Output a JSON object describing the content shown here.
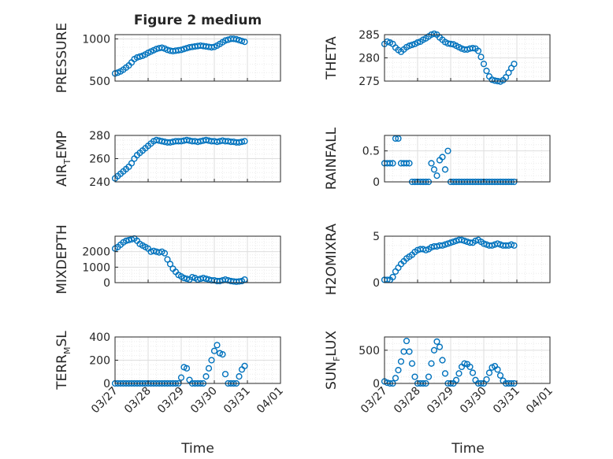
{
  "figure": {
    "title": "Figure 2 medium",
    "xlabel": "Time"
  },
  "x_ticks": [
    "03/27",
    "03/28",
    "03/29",
    "03/30",
    "03/31",
    "04/01"
  ],
  "x_domain": [
    "03/27 00:00",
    "04/01 00:00"
  ],
  "colors": {
    "marker": "#0072bd",
    "grid": "#dedede",
    "axis": "#262626"
  },
  "chart_data": [
    {
      "type": "scatter",
      "ylabel": "PRESSURE",
      "ylim": [
        500,
        1050
      ],
      "yticks": [
        {
          "v": 500,
          "t": "500"
        },
        {
          "v": 1000,
          "t": "1000"
        }
      ],
      "x": [
        "03/27 00:00",
        "03/27 02:00",
        "03/27 04:00",
        "03/27 06:00",
        "03/27 08:00",
        "03/27 10:00",
        "03/27 12:00",
        "03/27 14:00",
        "03/27 16:00",
        "03/27 18:00",
        "03/27 20:00",
        "03/27 22:00",
        "03/28 00:00",
        "03/28 02:00",
        "03/28 04:00",
        "03/28 06:00",
        "03/28 08:00",
        "03/28 10:00",
        "03/28 12:00",
        "03/28 14:00",
        "03/28 16:00",
        "03/28 18:00",
        "03/28 20:00",
        "03/28 22:00",
        "03/29 00:00",
        "03/29 02:00",
        "03/29 04:00",
        "03/29 06:00",
        "03/29 08:00",
        "03/29 10:00",
        "03/29 12:00",
        "03/29 14:00",
        "03/29 16:00",
        "03/29 18:00",
        "03/29 20:00",
        "03/29 22:00",
        "03/30 00:00",
        "03/30 02:00",
        "03/30 04:00",
        "03/30 06:00",
        "03/30 08:00",
        "03/30 10:00",
        "03/30 12:00",
        "03/30 14:00",
        "03/30 16:00",
        "03/30 18:00",
        "03/30 20:00",
        "03/30 22:00"
      ],
      "y": [
        590,
        600,
        615,
        635,
        660,
        685,
        720,
        760,
        780,
        790,
        800,
        815,
        835,
        850,
        865,
        880,
        890,
        895,
        885,
        870,
        860,
        855,
        860,
        865,
        870,
        880,
        890,
        900,
        905,
        910,
        915,
        920,
        915,
        910,
        905,
        900,
        905,
        920,
        940,
        960,
        980,
        990,
        1000,
        1000,
        995,
        985,
        975,
        965
      ]
    },
    {
      "type": "scatter",
      "ylabel": "THETA",
      "ylim": [
        275,
        285
      ],
      "yticks": [
        {
          "v": 275,
          "t": "275"
        },
        {
          "v": 280,
          "t": "280"
        },
        {
          "v": 285,
          "t": "285"
        }
      ],
      "x": [
        "03/27 00:00",
        "03/27 02:00",
        "03/27 04:00",
        "03/27 06:00",
        "03/27 08:00",
        "03/27 10:00",
        "03/27 12:00",
        "03/27 14:00",
        "03/27 16:00",
        "03/27 18:00",
        "03/27 20:00",
        "03/27 22:00",
        "03/28 00:00",
        "03/28 02:00",
        "03/28 04:00",
        "03/28 06:00",
        "03/28 08:00",
        "03/28 10:00",
        "03/28 12:00",
        "03/28 14:00",
        "03/28 16:00",
        "03/28 18:00",
        "03/28 20:00",
        "03/28 22:00",
        "03/29 00:00",
        "03/29 02:00",
        "03/29 04:00",
        "03/29 06:00",
        "03/29 08:00",
        "03/29 10:00",
        "03/29 12:00",
        "03/29 14:00",
        "03/29 16:00",
        "03/29 18:00",
        "03/29 20:00",
        "03/29 22:00",
        "03/30 00:00",
        "03/30 02:00",
        "03/30 04:00",
        "03/30 06:00",
        "03/30 08:00",
        "03/30 10:00",
        "03/30 12:00",
        "03/30 14:00",
        "03/30 16:00",
        "03/30 18:00",
        "03/30 20:00",
        "03/30 22:00"
      ],
      "y": [
        283,
        283.5,
        283.3,
        283,
        282.2,
        281.7,
        281.3,
        281.8,
        282.3,
        282.6,
        282.8,
        283,
        283.3,
        283.5,
        283.9,
        284.2,
        284.6,
        285,
        285.2,
        285,
        284.4,
        283.9,
        283.4,
        283.1,
        283,
        282.9,
        282.6,
        282.3,
        282,
        281.8,
        281.8,
        282,
        282.1,
        282,
        281.5,
        280.2,
        278.7,
        277.2,
        276,
        275.3,
        275.1,
        275,
        274.9,
        275.2,
        275.8,
        276.8,
        277.8,
        278.7
      ]
    },
    {
      "type": "scatter",
      "ylabel": "AIR_TEMP",
      "ylim": [
        240,
        280
      ],
      "yticks": [
        {
          "v": 240,
          "t": "240"
        },
        {
          "v": 260,
          "t": "260"
        },
        {
          "v": 280,
          "t": "280"
        }
      ],
      "x": [
        "03/27 00:00",
        "03/27 02:00",
        "03/27 04:00",
        "03/27 06:00",
        "03/27 08:00",
        "03/27 10:00",
        "03/27 12:00",
        "03/27 14:00",
        "03/27 16:00",
        "03/27 18:00",
        "03/27 20:00",
        "03/27 22:00",
        "03/28 00:00",
        "03/28 02:00",
        "03/28 04:00",
        "03/28 06:00",
        "03/28 08:00",
        "03/28 10:00",
        "03/28 12:00",
        "03/28 14:00",
        "03/28 16:00",
        "03/28 18:00",
        "03/28 20:00",
        "03/28 22:00",
        "03/29 00:00",
        "03/29 02:00",
        "03/29 04:00",
        "03/29 06:00",
        "03/29 08:00",
        "03/29 10:00",
        "03/29 12:00",
        "03/29 14:00",
        "03/29 16:00",
        "03/29 18:00",
        "03/29 20:00",
        "03/29 22:00",
        "03/30 00:00",
        "03/30 02:00",
        "03/30 04:00",
        "03/30 06:00",
        "03/30 08:00",
        "03/30 10:00",
        "03/30 12:00",
        "03/30 14:00",
        "03/30 16:00",
        "03/30 18:00",
        "03/30 20:00",
        "03/30 22:00"
      ],
      "y": [
        243,
        245,
        247,
        249,
        251,
        253,
        256,
        260,
        263,
        265,
        267,
        269,
        271,
        273,
        275,
        276,
        275.5,
        275,
        274.5,
        274,
        274,
        274.5,
        275,
        275,
        275,
        275.5,
        276,
        275.5,
        275,
        275,
        274.5,
        275,
        275.5,
        276,
        275.5,
        275,
        275,
        274.5,
        275,
        275.5,
        275,
        275,
        274.5,
        274.5,
        274,
        274,
        274.5,
        275
      ]
    },
    {
      "type": "scatter",
      "ylabel": "RAINFALL",
      "ylim": [
        0,
        0.75
      ],
      "yticks": [
        {
          "v": 0,
          "t": "0"
        },
        {
          "v": 0.5,
          "t": "0.5"
        }
      ],
      "x": [
        "03/27 00:00",
        "03/27 02:00",
        "03/27 04:00",
        "03/27 06:00",
        "03/27 08:00",
        "03/27 10:00",
        "03/27 12:00",
        "03/27 14:00",
        "03/27 16:00",
        "03/27 18:00",
        "03/27 20:00",
        "03/27 22:00",
        "03/28 00:00",
        "03/28 02:00",
        "03/28 04:00",
        "03/28 06:00",
        "03/28 08:00",
        "03/28 10:00",
        "03/28 12:00",
        "03/28 14:00",
        "03/28 16:00",
        "03/28 18:00",
        "03/28 20:00",
        "03/28 22:00",
        "03/29 00:00",
        "03/29 02:00",
        "03/29 04:00",
        "03/29 06:00",
        "03/29 08:00",
        "03/29 10:00",
        "03/29 12:00",
        "03/29 14:00",
        "03/29 16:00",
        "03/29 18:00",
        "03/29 20:00",
        "03/29 22:00",
        "03/30 00:00",
        "03/30 02:00",
        "03/30 04:00",
        "03/30 06:00",
        "03/30 08:00",
        "03/30 10:00",
        "03/30 12:00",
        "03/30 14:00",
        "03/30 16:00",
        "03/30 18:00",
        "03/30 20:00",
        "03/30 22:00"
      ],
      "y": [
        0.3,
        0.3,
        0.3,
        0.3,
        0.7,
        0.7,
        0.3,
        0.3,
        0.3,
        0.3,
        0,
        0,
        0,
        0,
        0,
        0,
        0,
        0.3,
        0.2,
        0.1,
        0.35,
        0.4,
        0.2,
        0.5,
        0,
        0,
        0,
        0,
        0,
        0,
        0,
        0,
        0,
        0,
        0,
        0,
        0,
        0,
        0,
        0,
        0,
        0,
        0,
        0,
        0,
        0,
        0,
        0
      ]
    },
    {
      "type": "scatter",
      "ylabel": "MIXDEPTH",
      "ylim": [
        0,
        3000
      ],
      "yticks": [
        {
          "v": 0,
          "t": "0"
        },
        {
          "v": 1000,
          "t": "1000"
        },
        {
          "v": 2000,
          "t": "2000"
        }
      ],
      "x": [
        "03/27 00:00",
        "03/27 02:00",
        "03/27 04:00",
        "03/27 06:00",
        "03/27 08:00",
        "03/27 10:00",
        "03/27 12:00",
        "03/27 14:00",
        "03/27 16:00",
        "03/27 18:00",
        "03/27 20:00",
        "03/27 22:00",
        "03/28 00:00",
        "03/28 02:00",
        "03/28 04:00",
        "03/28 06:00",
        "03/28 08:00",
        "03/28 10:00",
        "03/28 12:00",
        "03/28 14:00",
        "03/28 16:00",
        "03/28 18:00",
        "03/28 20:00",
        "03/28 22:00",
        "03/29 00:00",
        "03/29 02:00",
        "03/29 04:00",
        "03/29 06:00",
        "03/29 08:00",
        "03/29 10:00",
        "03/29 12:00",
        "03/29 14:00",
        "03/29 16:00",
        "03/29 18:00",
        "03/29 20:00",
        "03/29 22:00",
        "03/30 00:00",
        "03/30 02:00",
        "03/30 04:00",
        "03/30 06:00",
        "03/30 08:00",
        "03/30 10:00",
        "03/30 12:00",
        "03/30 14:00",
        "03/30 16:00",
        "03/30 18:00",
        "03/30 20:00",
        "03/30 22:00"
      ],
      "y": [
        2200,
        2300,
        2450,
        2600,
        2700,
        2750,
        2800,
        2850,
        2700,
        2500,
        2400,
        2300,
        2200,
        2000,
        2050,
        2000,
        1950,
        2000,
        1900,
        1500,
        1200,
        900,
        700,
        500,
        400,
        300,
        250,
        200,
        350,
        300,
        200,
        250,
        300,
        250,
        200,
        150,
        150,
        100,
        100,
        150,
        200,
        150,
        100,
        80,
        60,
        80,
        100,
        200
      ]
    },
    {
      "type": "scatter",
      "ylabel": "H2OMIXRA",
      "ylim": [
        0,
        5
      ],
      "yticks": [
        {
          "v": 0,
          "t": "0"
        },
        {
          "v": 5,
          "t": "5"
        }
      ],
      "x": [
        "03/27 00:00",
        "03/27 02:00",
        "03/27 04:00",
        "03/27 06:00",
        "03/27 08:00",
        "03/27 10:00",
        "03/27 12:00",
        "03/27 14:00",
        "03/27 16:00",
        "03/27 18:00",
        "03/27 20:00",
        "03/27 22:00",
        "03/28 00:00",
        "03/28 02:00",
        "03/28 04:00",
        "03/28 06:00",
        "03/28 08:00",
        "03/28 10:00",
        "03/28 12:00",
        "03/28 14:00",
        "03/28 16:00",
        "03/28 18:00",
        "03/28 20:00",
        "03/28 22:00",
        "03/29 00:00",
        "03/29 02:00",
        "03/29 04:00",
        "03/29 06:00",
        "03/29 08:00",
        "03/29 10:00",
        "03/29 12:00",
        "03/29 14:00",
        "03/29 16:00",
        "03/29 18:00",
        "03/29 20:00",
        "03/29 22:00",
        "03/30 00:00",
        "03/30 02:00",
        "03/30 04:00",
        "03/30 06:00",
        "03/30 08:00",
        "03/30 10:00",
        "03/30 12:00",
        "03/30 14:00",
        "03/30 16:00",
        "03/30 18:00",
        "03/30 20:00",
        "03/30 22:00"
      ],
      "y": [
        0.3,
        0.3,
        0.3,
        0.6,
        1.2,
        1.6,
        2,
        2.3,
        2.6,
        2.8,
        3,
        3.3,
        3.5,
        3.6,
        3.6,
        3.5,
        3.6,
        3.8,
        3.9,
        3.9,
        4,
        4,
        4.1,
        4.2,
        4.3,
        4.4,
        4.5,
        4.6,
        4.6,
        4.5,
        4.4,
        4.3,
        4.3,
        4.5,
        4.6,
        4.4,
        4.2,
        4.1,
        4,
        4,
        4.1,
        4.2,
        4.1,
        4,
        4,
        4,
        4.1,
        4
      ]
    },
    {
      "type": "scatter",
      "ylabel": "TERR_MSL",
      "ylim": [
        0,
        400
      ],
      "yticks": [
        {
          "v": 0,
          "t": "0"
        },
        {
          "v": 200,
          "t": "200"
        },
        {
          "v": 400,
          "t": "400"
        }
      ],
      "x": [
        "03/27 00:00",
        "03/27 02:00",
        "03/27 04:00",
        "03/27 06:00",
        "03/27 08:00",
        "03/27 10:00",
        "03/27 12:00",
        "03/27 14:00",
        "03/27 16:00",
        "03/27 18:00",
        "03/27 20:00",
        "03/27 22:00",
        "03/28 00:00",
        "03/28 02:00",
        "03/28 04:00",
        "03/28 06:00",
        "03/28 08:00",
        "03/28 10:00",
        "03/28 12:00",
        "03/28 14:00",
        "03/28 16:00",
        "03/28 18:00",
        "03/28 20:00",
        "03/28 22:00",
        "03/29 00:00",
        "03/29 02:00",
        "03/29 04:00",
        "03/29 06:00",
        "03/29 08:00",
        "03/29 10:00",
        "03/29 12:00",
        "03/29 14:00",
        "03/29 16:00",
        "03/29 18:00",
        "03/29 20:00",
        "03/29 22:00",
        "03/30 00:00",
        "03/30 02:00",
        "03/30 04:00",
        "03/30 06:00",
        "03/30 08:00",
        "03/30 10:00",
        "03/30 12:00",
        "03/30 14:00",
        "03/30 16:00",
        "03/30 18:00",
        "03/30 20:00",
        "03/30 22:00"
      ],
      "y": [
        0,
        0,
        0,
        0,
        0,
        0,
        0,
        0,
        0,
        0,
        0,
        0,
        0,
        0,
        0,
        0,
        0,
        0,
        0,
        0,
        0,
        0,
        0,
        0,
        50,
        140,
        130,
        30,
        0,
        0,
        0,
        0,
        0,
        60,
        130,
        200,
        280,
        330,
        260,
        250,
        80,
        0,
        0,
        0,
        0,
        60,
        120,
        150
      ]
    },
    {
      "type": "scatter",
      "ylabel": "SUN_FLUX",
      "ylim": [
        0,
        700
      ],
      "yticks": [
        {
          "v": 0,
          "t": "0"
        },
        {
          "v": 500,
          "t": "500"
        }
      ],
      "x": [
        "03/27 00:00",
        "03/27 02:00",
        "03/27 04:00",
        "03/27 06:00",
        "03/27 08:00",
        "03/27 10:00",
        "03/27 12:00",
        "03/27 14:00",
        "03/27 16:00",
        "03/27 18:00",
        "03/27 20:00",
        "03/27 22:00",
        "03/28 00:00",
        "03/28 02:00",
        "03/28 04:00",
        "03/28 06:00",
        "03/28 08:00",
        "03/28 10:00",
        "03/28 12:00",
        "03/28 14:00",
        "03/28 16:00",
        "03/28 18:00",
        "03/28 20:00",
        "03/28 22:00",
        "03/29 00:00",
        "03/29 02:00",
        "03/29 04:00",
        "03/29 06:00",
        "03/29 08:00",
        "03/29 10:00",
        "03/29 12:00",
        "03/29 14:00",
        "03/29 16:00",
        "03/29 18:00",
        "03/29 20:00",
        "03/29 22:00",
        "03/30 00:00",
        "03/30 02:00",
        "03/30 04:00",
        "03/30 06:00",
        "03/30 08:00",
        "03/30 10:00",
        "03/30 12:00",
        "03/30 14:00",
        "03/30 16:00",
        "03/30 18:00",
        "03/30 20:00",
        "03/30 22:00"
      ],
      "y": [
        30,
        10,
        0,
        0,
        80,
        200,
        330,
        480,
        640,
        480,
        300,
        100,
        0,
        0,
        0,
        0,
        100,
        300,
        500,
        630,
        550,
        350,
        150,
        0,
        0,
        0,
        50,
        150,
        250,
        300,
        290,
        250,
        160,
        50,
        0,
        0,
        0,
        60,
        160,
        240,
        260,
        210,
        120,
        40,
        0,
        0,
        0,
        0
      ]
    }
  ]
}
